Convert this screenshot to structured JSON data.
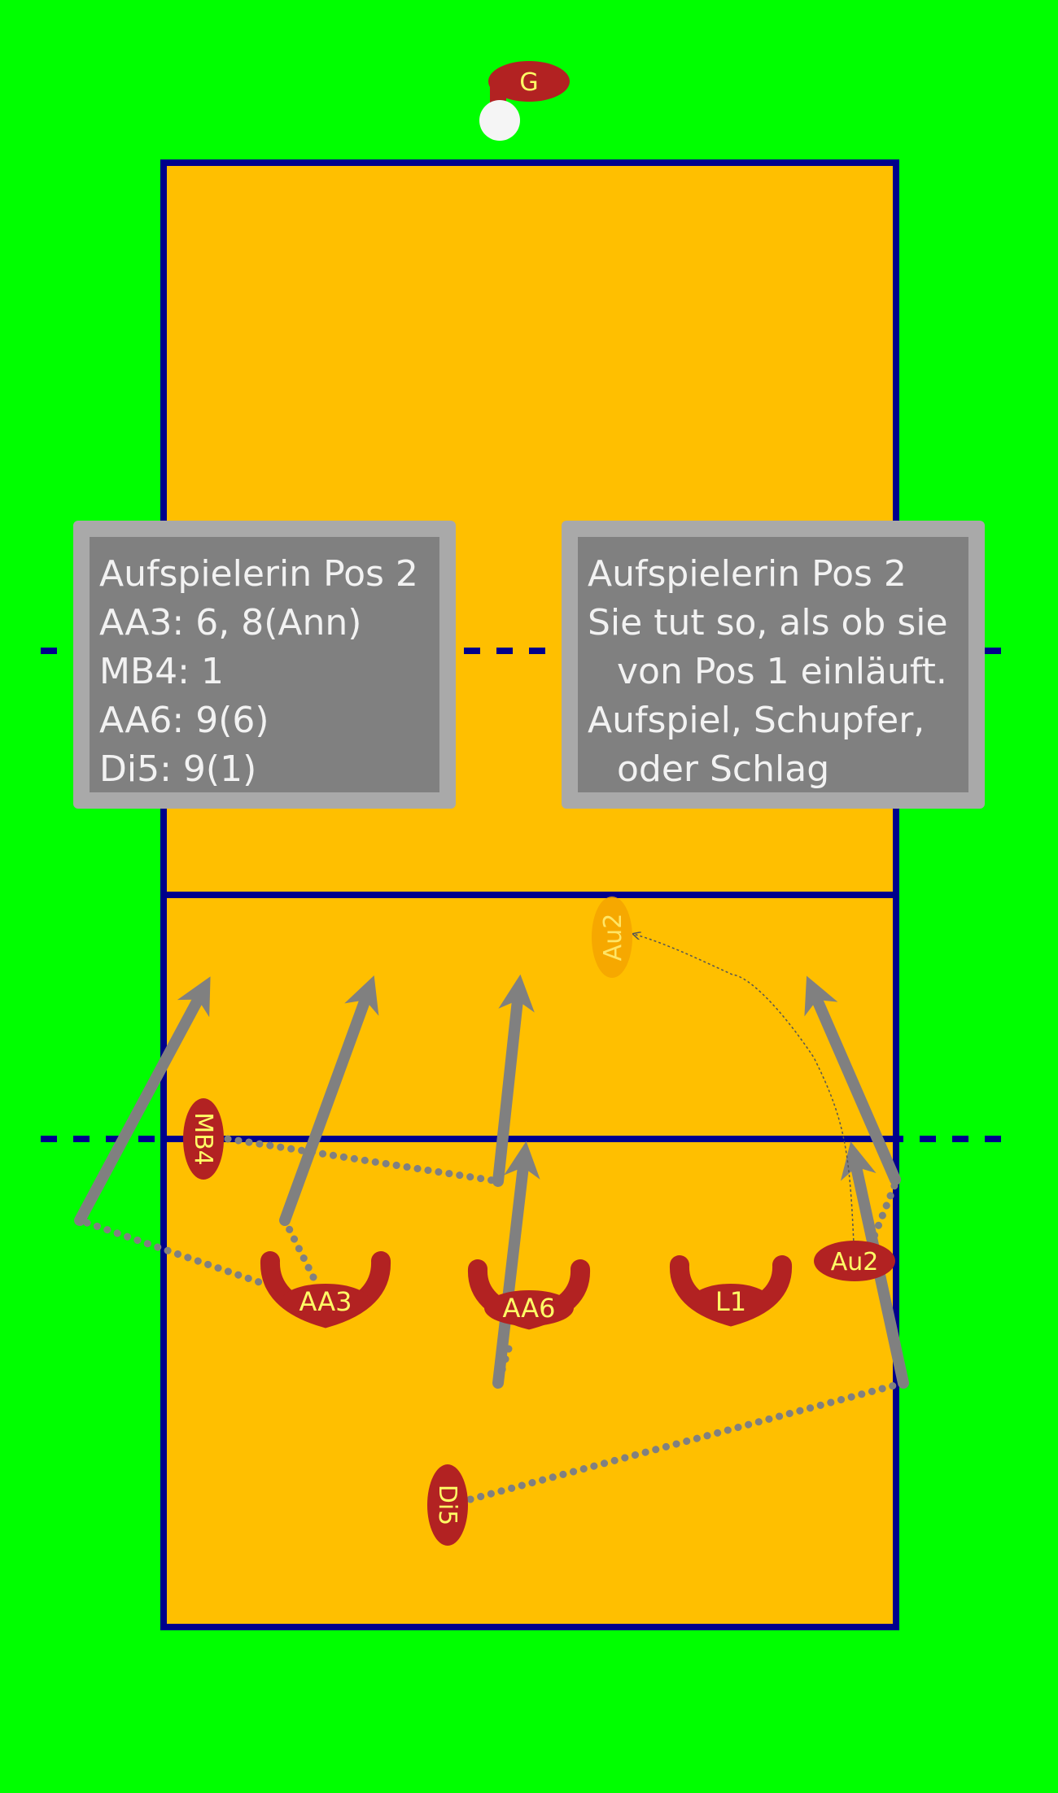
{
  "colors": {
    "field": "#00FF00",
    "court": "#FFBF00",
    "lines": "#00008B",
    "player": "#B22222",
    "player_text": "#FFFF66",
    "ghost_player": "#F4A300",
    "arrow": "#808080",
    "ball": "#F5F5F5"
  },
  "players": {
    "server": "G",
    "mb4": "MB4",
    "aa3": "AA3",
    "aa6": "AA6",
    "l1": "L1",
    "au2": "Au2",
    "au2_target": "Au2",
    "di5": "Di5"
  },
  "note_left": {
    "lines": [
      "Aufspielerin Pos 2",
      "AA3: 6, 8(Ann)",
      "MB4: 1",
      "AA6: 9(6)",
      "Di5: 9(1)"
    ]
  },
  "note_right": {
    "lines": [
      "Aufspielerin Pos 2",
      "Sie tut so, als ob sie",
      "von Pos 1 einläuft.",
      "Aufspiel, Schupfer,",
      "oder Schlag"
    ]
  }
}
